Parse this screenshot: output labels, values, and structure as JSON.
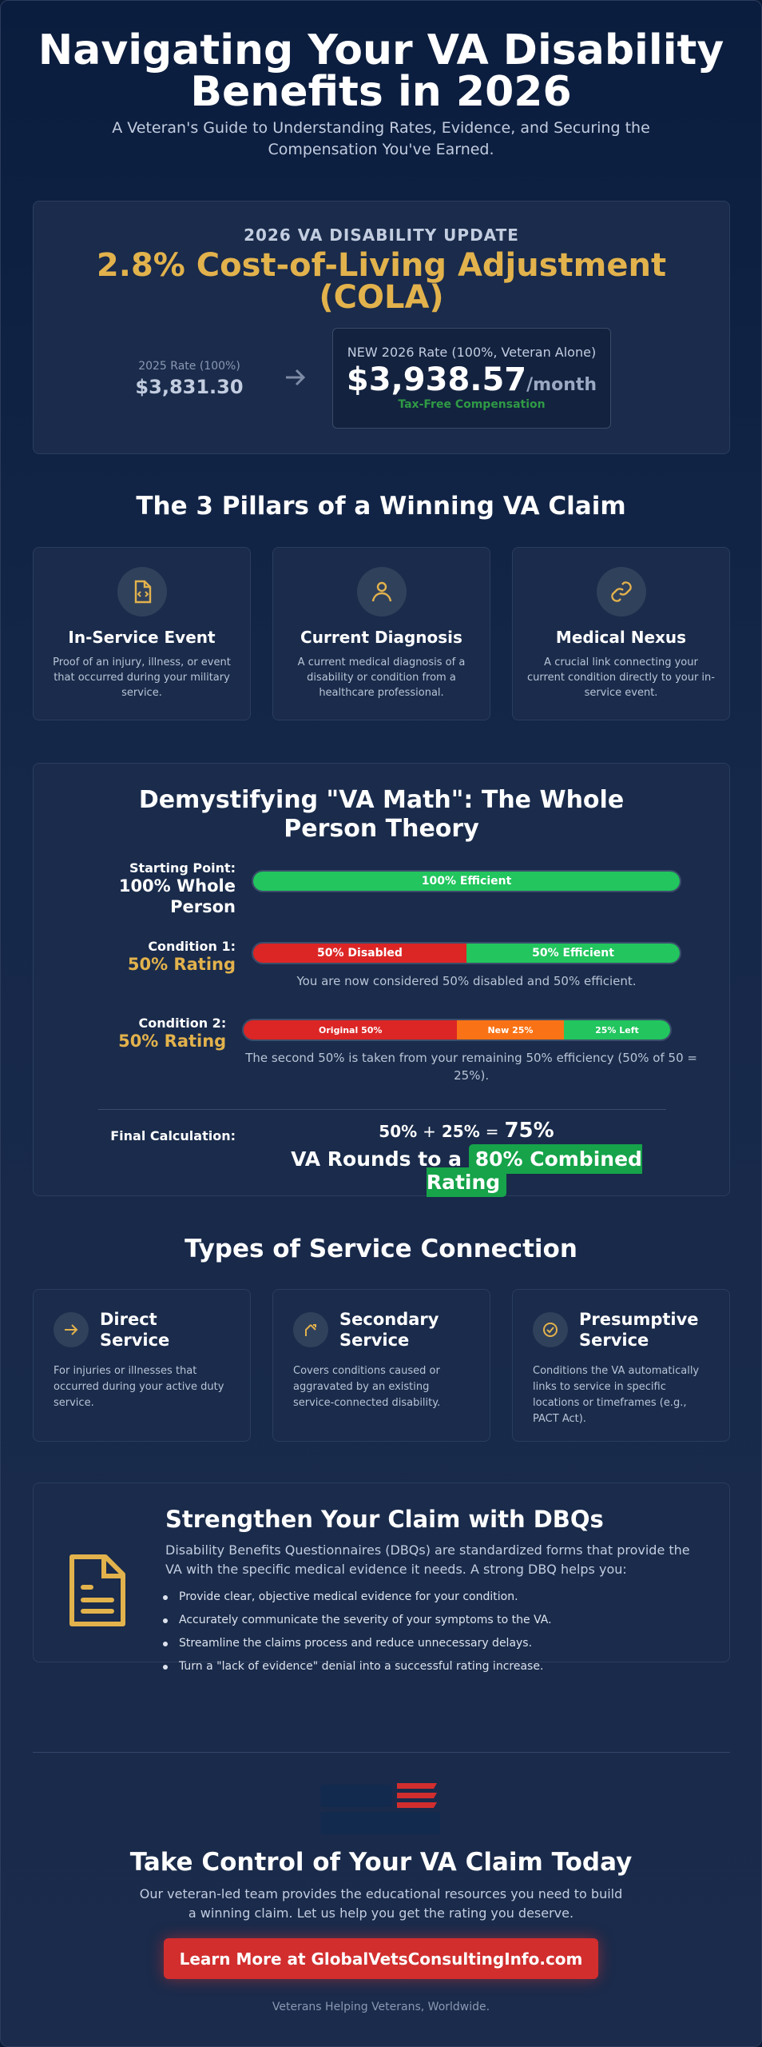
{
  "header": {
    "title": "Navigating Your VA Disability Benefits in 2026",
    "subtitle": "A Veteran's Guide to Understanding Rates, Evidence, and Securing the Compensation You've Earned."
  },
  "cola": {
    "label": "2026 VA DISABILITY UPDATE",
    "headline": "2.8% Cost-of-Living Adjustment (COLA)",
    "old_rate_label": "2025 Rate (100%)",
    "old_rate": "$3,831.30",
    "new_rate_label": "NEW 2026 Rate (100%, Veteran Alone)",
    "new_rate": "$3,938.57",
    "new_rate_unit": "/month",
    "note": "Tax-Free Compensation"
  },
  "pillars": {
    "title": "The 3 Pillars of a Winning VA Claim",
    "items": [
      {
        "title": "In-Service Event",
        "text": "Proof of an injury, illness, or event that occurred during your military service."
      },
      {
        "title": "Current Diagnosis",
        "text": "A current medical diagnosis of a disability or condition from a healthcare professional."
      },
      {
        "title": "Medical Nexus",
        "text": "A crucial link connecting your current condition directly to your in-service event."
      }
    ]
  },
  "va_math": {
    "title": "Demystifying \"VA Math\": The Whole Person Theory",
    "rows": [
      {
        "label": "Starting Point:",
        "value": "100% Whole Person",
        "segments": [
          "100% Efficient"
        ]
      },
      {
        "label": "Condition 1:",
        "value": "50% Rating",
        "segments": [
          "50% Disabled",
          "50% Efficient"
        ],
        "note": "You are now considered 50% disabled and 50% efficient."
      },
      {
        "label": "Condition 2:",
        "value": "50% Rating",
        "segments": [
          "Original 50%",
          "New 25%",
          "25% Left"
        ],
        "note": "The second 50% is taken from your remaining 50% efficiency (50% of 50 = 25%)."
      }
    ],
    "final": {
      "label": "Final Calculation:",
      "equation": [
        "50%",
        "+",
        "25%",
        "=",
        "75%"
      ],
      "result_prefix": "VA Rounds to a",
      "result": "80% Combined Rating"
    }
  },
  "service_types": {
    "title": "Types of Service Connection",
    "items": [
      {
        "title": "Direct Service",
        "text": "For injuries or illnesses that occurred during your active duty service."
      },
      {
        "title": "Secondary Service",
        "text": "Covers conditions caused or aggravated by an existing service-connected disability."
      },
      {
        "title": "Presumptive Service",
        "text": "Conditions the VA automatically links to service in specific locations or timeframes (e.g., PACT Act)."
      }
    ]
  },
  "dbq": {
    "title": "Strengthen Your Claim with DBQs",
    "intro": "Disability Benefits Questionnaires (DBQs) are standardized forms that provide the VA with the specific medical evidence it needs. A strong DBQ helps you:",
    "bullets": [
      "Provide clear, objective medical evidence for your condition.",
      "Accurately communicate the severity of your symptoms to the VA.",
      "Streamline the claims process and reduce unnecessary delays.",
      "Turn a \"lack of evidence\" denial into a successful rating increase."
    ]
  },
  "cta": {
    "title": "Take Control of Your VA Claim Today",
    "text": "Our veteran-led team provides the educational resources you need to build a winning claim. Let us help you get the rating you deserve.",
    "button": "Learn More at GlobalVetsConsultingInfo.com",
    "footer": "Veterans Helping Veterans, Worldwide."
  }
}
